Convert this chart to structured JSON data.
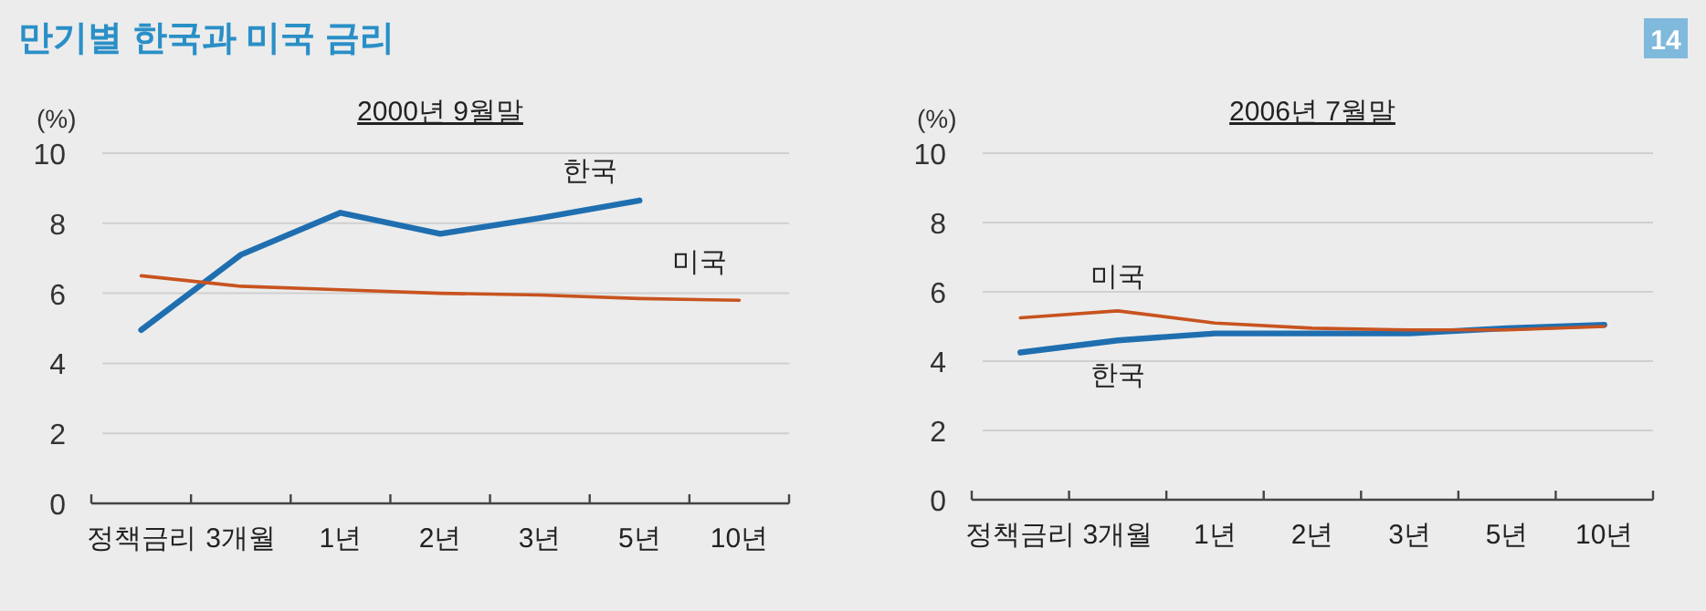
{
  "chart_data": [
    {
      "type": "line",
      "title": "2000년 9월말",
      "ylabel": "(%)",
      "annotations": [
        "만기별 한국과 미국 금리",
        "14"
      ],
      "categories": [
        "정책금리",
        "3개월",
        "1년",
        "2년",
        "3년",
        "5년",
        "10년"
      ],
      "ylim": [
        0,
        10
      ],
      "yticks": [
        0,
        2,
        4,
        6,
        8,
        10
      ],
      "grid": "y",
      "legend": false,
      "series": [
        {
          "name": "한국",
          "color": "#1f6fb0",
          "values": [
            4.95,
            7.1,
            8.3,
            7.7,
            8.15,
            8.65,
            null
          ]
        },
        {
          "name": "미국",
          "color": "#c8531f",
          "values": [
            6.5,
            6.2,
            6.1,
            6.0,
            5.95,
            5.85,
            5.8
          ]
        }
      ]
    },
    {
      "type": "line",
      "title": "2006년 7월말",
      "ylabel": "(%)",
      "categories": [
        "정책금리",
        "3개월",
        "1년",
        "2년",
        "3년",
        "5년",
        "10년"
      ],
      "ylim": [
        0,
        10
      ],
      "yticks": [
        0,
        2,
        4,
        6,
        8,
        10
      ],
      "grid": "y",
      "legend": false,
      "series": [
        {
          "name": "한국",
          "color": "#1f6fb0",
          "values": [
            4.25,
            4.6,
            4.8,
            4.8,
            4.8,
            4.95,
            5.05
          ]
        },
        {
          "name": "미국",
          "color": "#c8531f",
          "values": [
            5.25,
            5.45,
            5.1,
            4.95,
            4.9,
            4.9,
            5.0
          ]
        }
      ]
    }
  ]
}
